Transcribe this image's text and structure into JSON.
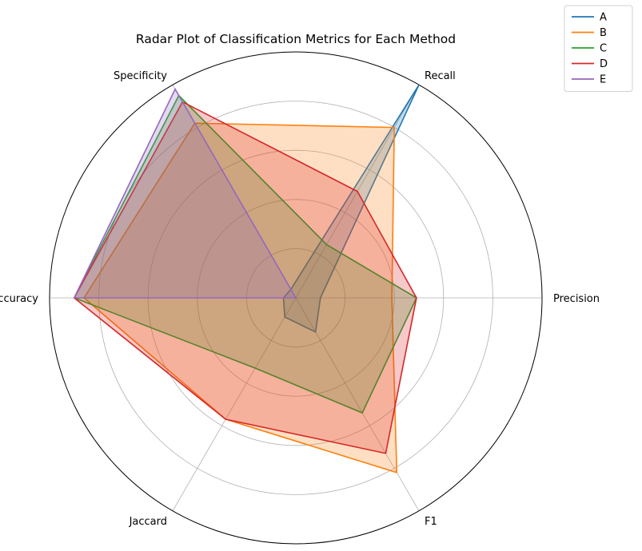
{
  "chart_data": {
    "type": "radar",
    "title": "Radar Plot of Classification Metrics for Each Method",
    "axes": [
      "Precision",
      "Recall",
      "Specificity",
      "Accuracy",
      "Jaccard",
      "F1"
    ],
    "rlim": [
      0,
      1
    ],
    "grid": true,
    "legend_position": "top-right",
    "series": [
      {
        "name": "A",
        "color": "#1f77b4",
        "values": [
          0.1,
          1.0,
          0.04,
          0.05,
          0.09,
          0.16
        ]
      },
      {
        "name": "B",
        "color": "#ff7f0e",
        "values": [
          0.39,
          0.8,
          0.82,
          0.86,
          0.57,
          0.82
        ]
      },
      {
        "name": "C",
        "color": "#2ca02c",
        "values": [
          0.49,
          0.25,
          0.95,
          0.9,
          0.33,
          0.54
        ]
      },
      {
        "name": "D",
        "color": "#d62728",
        "values": [
          0.49,
          0.5,
          0.92,
          0.9,
          0.57,
          0.73
        ]
      },
      {
        "name": "E",
        "color": "#9467bd",
        "values": [
          0.0,
          0.0,
          0.98,
          0.9,
          0.0,
          0.0
        ]
      }
    ]
  }
}
